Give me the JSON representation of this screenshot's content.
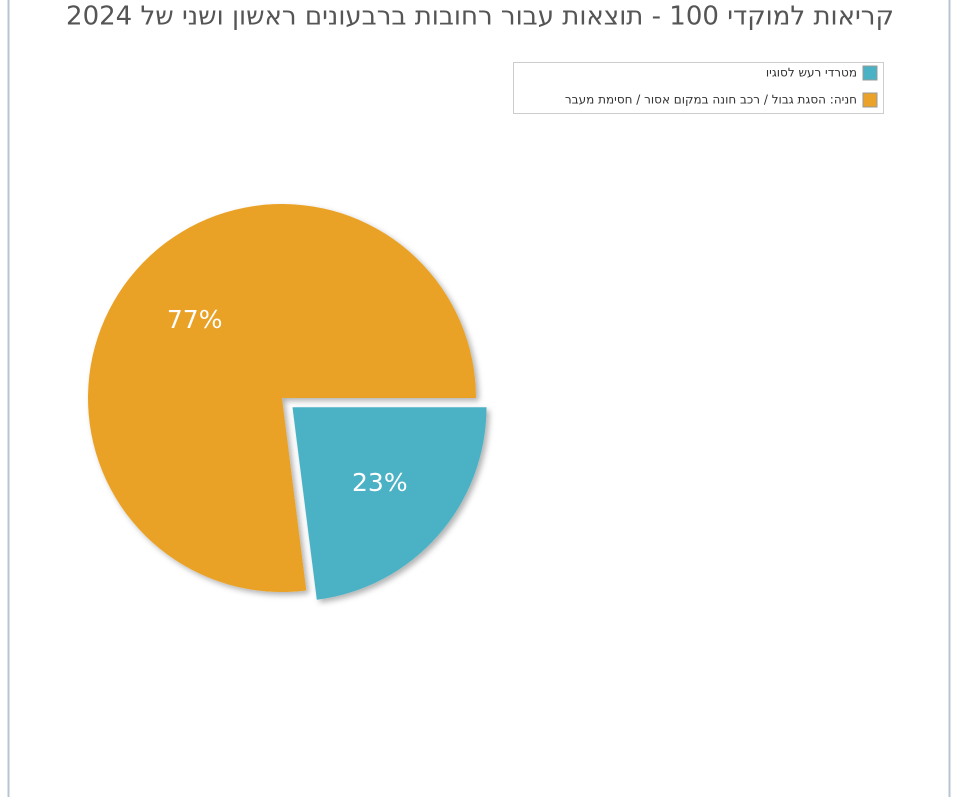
{
  "chart_data": {
    "type": "pie",
    "title": "קריאות למוקדי 100 - תוצאות עבור רחובות ברבעונים ראשון ושני של 2024",
    "categories": [
      "מטרדי רעש לסוגיו",
      "חניה: הסגת גבול / רכב חונה במקום אסור / חסימת מעבר"
    ],
    "values": [
      23,
      77
    ],
    "value_labels": [
      "23%",
      "77%"
    ],
    "colors": [
      "#4bb2c5",
      "#eaa228"
    ],
    "legend": "top-right"
  }
}
